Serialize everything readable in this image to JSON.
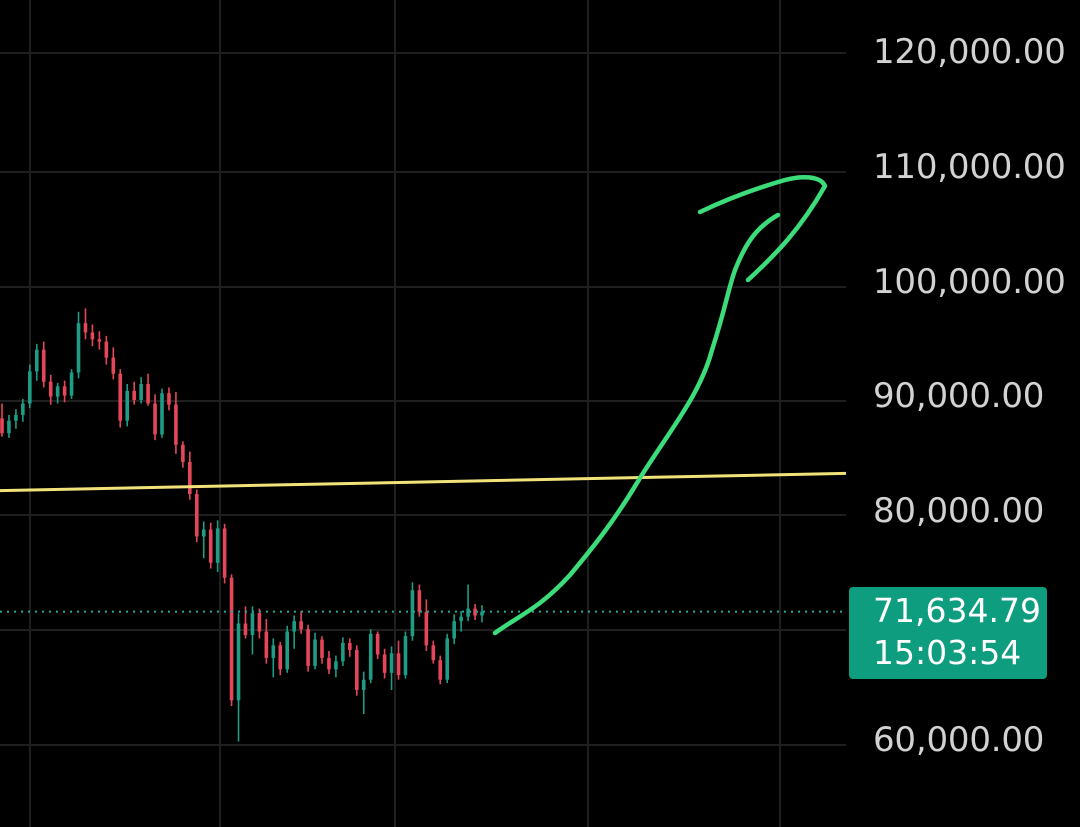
{
  "chart_data": {
    "type": "candlestick",
    "ylim": [
      58000,
      124000
    ],
    "y_ticks": [
      120000,
      110000,
      100000,
      90000,
      80000,
      60000
    ],
    "y_tick_labels": [
      "120,000.00",
      "110,000.00",
      "100,000.00",
      "90,000.00",
      "80,000.00",
      "60,000.00"
    ],
    "grid": true,
    "last_price": 71634.79,
    "last_price_label": "71,634.79",
    "countdown_label": "15:03:54",
    "horizontal_line": {
      "start_value": 82200,
      "end_value": 83700,
      "color": "#f2e27a"
    },
    "projection_arrow": {
      "color": "#3ddc7a"
    },
    "colors": {
      "up": "#1e9c86",
      "down": "#e5475a",
      "grid": "#1f1f1f",
      "last_price_line": "#26a69a"
    },
    "candles": [
      [
        88500,
        89800,
        86900,
        87200
      ],
      [
        87200,
        88800,
        86800,
        88300
      ],
      [
        88300,
        89300,
        87600,
        88800
      ],
      [
        88800,
        90200,
        88200,
        89800
      ],
      [
        89800,
        93200,
        89400,
        92600
      ],
      [
        92600,
        95000,
        91800,
        94500
      ],
      [
        94500,
        95200,
        91200,
        91700
      ],
      [
        91700,
        92300,
        89700,
        90400
      ],
      [
        90400,
        91600,
        89800,
        91300
      ],
      [
        91300,
        91800,
        89900,
        90500
      ],
      [
        90500,
        92800,
        90200,
        92500
      ],
      [
        92500,
        97800,
        92000,
        96800
      ],
      [
        96800,
        98100,
        95400,
        96000
      ],
      [
        96000,
        96700,
        94800,
        95400
      ],
      [
        95400,
        96100,
        94500,
        95200
      ],
      [
        95200,
        95700,
        93200,
        93800
      ],
      [
        93800,
        94700,
        91900,
        92400
      ],
      [
        92400,
        92800,
        87700,
        88300
      ],
      [
        88300,
        91500,
        87800,
        90900
      ],
      [
        90900,
        91700,
        89700,
        90100
      ],
      [
        90100,
        92100,
        89800,
        91500
      ],
      [
        91500,
        92400,
        89600,
        89800
      ],
      [
        89800,
        90600,
        86600,
        87100
      ],
      [
        87100,
        91100,
        86800,
        90700
      ],
      [
        90700,
        91200,
        89200,
        89700
      ],
      [
        89700,
        90800,
        85400,
        86200
      ],
      [
        86200,
        86500,
        84200,
        84700
      ],
      [
        84700,
        85600,
        81400,
        81900
      ],
      [
        81900,
        82300,
        77700,
        78200
      ],
      [
        78200,
        79500,
        76300,
        78800
      ],
      [
        78800,
        79400,
        75400,
        75900
      ],
      [
        75900,
        79600,
        75100,
        78900
      ],
      [
        78900,
        79300,
        74100,
        74600
      ],
      [
        74600,
        74900,
        63400,
        63900
      ],
      [
        63900,
        71500,
        60300,
        70600
      ],
      [
        70600,
        72100,
        69300,
        69600
      ],
      [
        69600,
        72100,
        67900,
        71500
      ],
      [
        71500,
        71900,
        69300,
        69900
      ],
      [
        69900,
        71000,
        67100,
        67600
      ],
      [
        67600,
        69300,
        65900,
        68700
      ],
      [
        68700,
        69000,
        66100,
        66600
      ],
      [
        66600,
        70400,
        66300,
        69900
      ],
      [
        69900,
        71300,
        68400,
        70800
      ],
      [
        70800,
        71700,
        69700,
        70100
      ],
      [
        70100,
        70500,
        66400,
        66900
      ],
      [
        66900,
        69800,
        66600,
        69200
      ],
      [
        69200,
        69500,
        67100,
        67600
      ],
      [
        67600,
        68200,
        66200,
        66600
      ],
      [
        66600,
        67800,
        65900,
        67300
      ],
      [
        67300,
        69400,
        66900,
        68900
      ],
      [
        68900,
        69300,
        67700,
        68300
      ],
      [
        68300,
        68700,
        64300,
        64800
      ],
      [
        64800,
        66400,
        62700,
        65700
      ],
      [
        65700,
        70100,
        65400,
        69700
      ],
      [
        69700,
        69900,
        67500,
        67900
      ],
      [
        67900,
        68400,
        65800,
        66300
      ],
      [
        66300,
        68600,
        64800,
        68000
      ],
      [
        68000,
        69100,
        65700,
        66100
      ],
      [
        66100,
        69900,
        65800,
        69500
      ],
      [
        69500,
        74200,
        69100,
        73500
      ],
      [
        73500,
        74000,
        71200,
        71600
      ],
      [
        71600,
        72700,
        68200,
        68700
      ],
      [
        68700,
        69100,
        67100,
        67400
      ],
      [
        67400,
        67800,
        65300,
        65700
      ],
      [
        65700,
        69700,
        65400,
        69300
      ],
      [
        69300,
        71400,
        68800,
        70800
      ],
      [
        70800,
        71700,
        69900,
        71200
      ],
      [
        71200,
        74000,
        70800,
        71900
      ],
      [
        71900,
        72300,
        70900,
        71300
      ],
      [
        71300,
        72200,
        70700,
        71634.79
      ]
    ]
  }
}
